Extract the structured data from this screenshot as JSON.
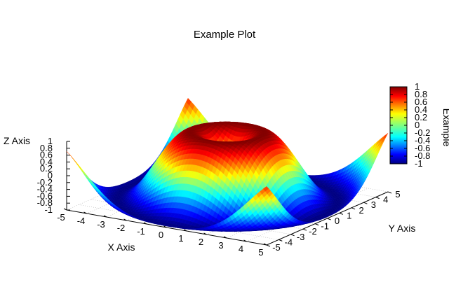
{
  "chart_data": {
    "type": "surface3d",
    "title": "Example Plot",
    "xlabel": "X Axis",
    "ylabel": "Y Axis",
    "zlabel": "Z Axis",
    "colorbar_label": "Example",
    "x_ticks": [
      "-5",
      "-4",
      "-3",
      "-2",
      "-1",
      "0",
      "1",
      "2",
      "3",
      "4",
      "5"
    ],
    "y_ticks": [
      "-5",
      "-4",
      "-3",
      "-2",
      "-1",
      "0",
      "1",
      "2",
      "3",
      "4",
      "5"
    ],
    "z_ticks": [
      "1",
      "0.8",
      "0.6",
      "0.4",
      "0.2",
      "0",
      "-0.2",
      "-0.4",
      "-0.6",
      "-0.8",
      "-1"
    ],
    "colorbar_ticks": [
      "1",
      "0.8",
      "0.6",
      "0.4",
      "0.2",
      "0",
      "-0.2",
      "-0.4",
      "-0.6",
      "-0.8",
      "-1"
    ],
    "xlim": [
      -5,
      5
    ],
    "ylim": [
      -5,
      5
    ],
    "zlim": [
      -1,
      1
    ],
    "function": "z = sin(sqrt(x^2 + y^2))",
    "grid": true,
    "base_contours": true,
    "colormap": "jet"
  }
}
